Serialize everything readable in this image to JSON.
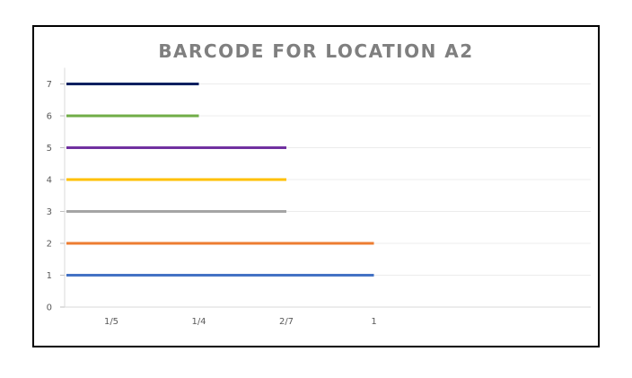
{
  "chart_data": {
    "type": "line",
    "title": "BARCODE FOR LOCATION A2",
    "xlabel": "",
    "ylabel": "",
    "categories": [
      "1/5",
      "1/4",
      "2/7",
      "1"
    ],
    "yticks": [
      0,
      1,
      2,
      3,
      4,
      5,
      6,
      7
    ],
    "ylim": [
      0,
      7
    ],
    "grid": true,
    "legend": "none",
    "series": [
      {
        "y": 1,
        "x_start": "1/5",
        "x_end": "1",
        "color": "#4472c4"
      },
      {
        "y": 2,
        "x_start": "1/5",
        "x_end": "1",
        "color": "#ed7d31"
      },
      {
        "y": 3,
        "x_start": "1/5",
        "x_end": "2/7",
        "color": "#a5a5a5"
      },
      {
        "y": 4,
        "x_start": "1/5",
        "x_end": "2/7",
        "color": "#ffc000"
      },
      {
        "y": 5,
        "x_start": "1/5",
        "x_end": "2/7",
        "color": "#7030a0"
      },
      {
        "y": 6,
        "x_start": "1/5",
        "x_end": "1/4",
        "color": "#70ad47"
      },
      {
        "y": 7,
        "x_start": "1/5",
        "x_end": "1/4",
        "color": "#002060"
      }
    ]
  }
}
